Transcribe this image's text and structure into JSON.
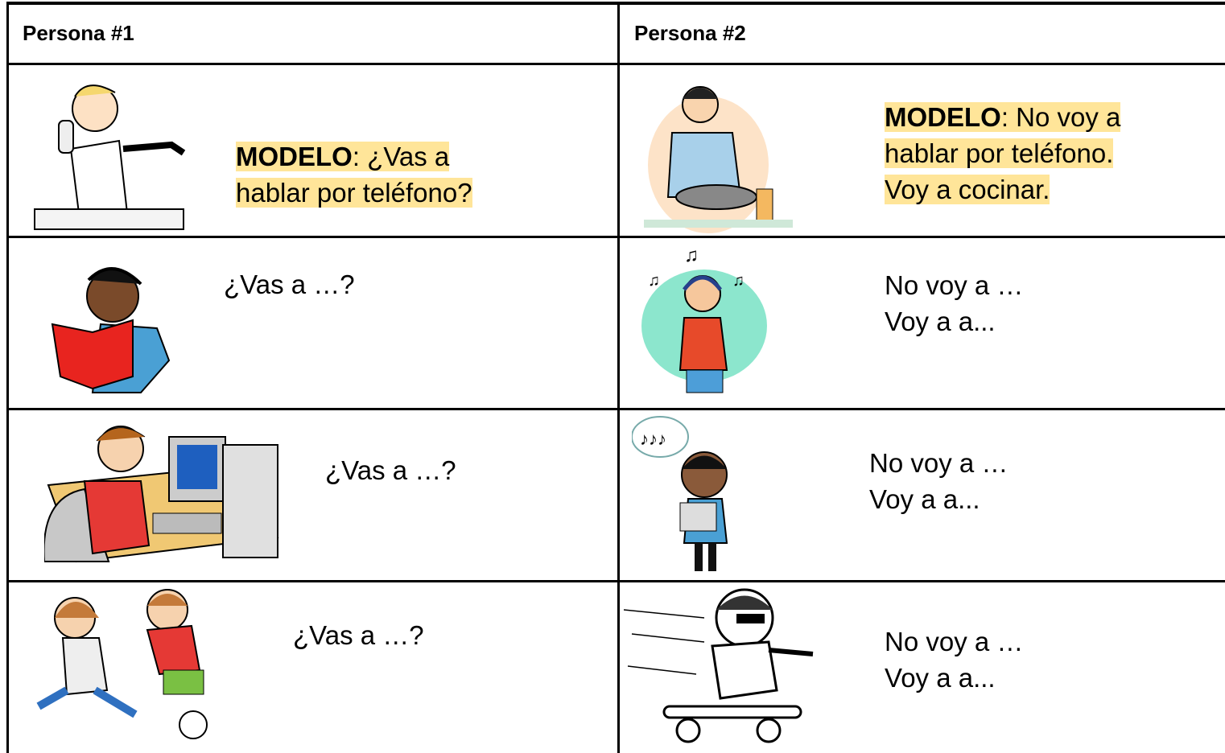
{
  "table": {
    "header": [
      "Persona #1",
      "Persona #2"
    ],
    "rows": [
      [
        {
          "label": "MODELO",
          "lines": [
            ": ¿Vas a hablar por teléfono?"
          ]
        },
        {
          "label": "MODELO",
          "lines": [
            ": No voy a hablar por teléfono.",
            "Voy a cocinar."
          ]
        }
      ],
      [
        {
          "lines": [
            "¿Vas a …?"
          ]
        },
        {
          "lines": [
            "No voy a …",
            "Voy a a..."
          ]
        }
      ],
      [
        {
          "lines": [
            "¿Vas a …?"
          ]
        },
        {
          "lines": [
            "No voy a …",
            "Voy a a..."
          ]
        }
      ],
      [
        {
          "lines": [
            "¿Vas a …?"
          ]
        },
        {
          "lines": [
            "No voy a …",
            "Voy a a..."
          ]
        }
      ]
    ]
  }
}
